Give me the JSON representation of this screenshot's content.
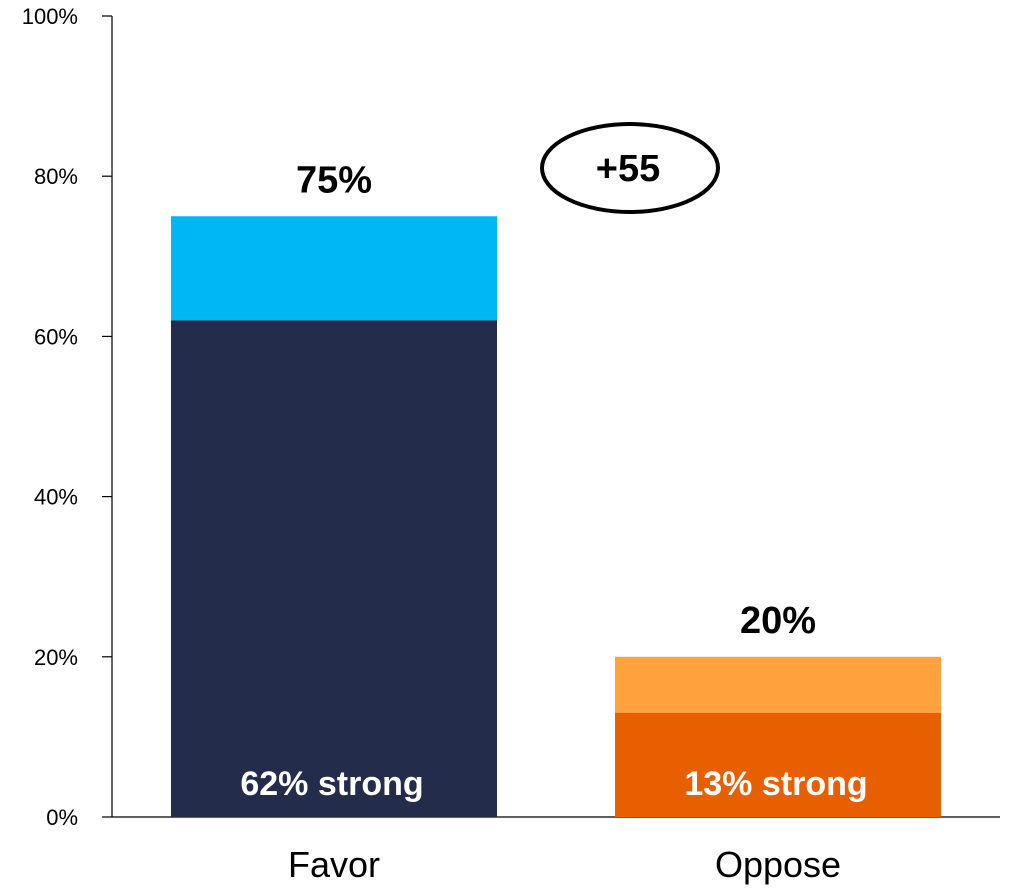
{
  "chart_data": {
    "type": "bar",
    "stacked": true,
    "categories": [
      "Favor",
      "Oppose"
    ],
    "bars": [
      {
        "category": "Favor",
        "total": 75,
        "strong": 62,
        "total_label": "75%",
        "strong_label": "62% strong",
        "colors": {
          "strong": "#242c4c",
          "rest": "#00b7f5"
        }
      },
      {
        "category": "Oppose",
        "total": 20,
        "strong": 13,
        "total_label": "20%",
        "strong_label": "13% strong",
        "colors": {
          "strong": "#e85f00",
          "rest": "#ffa13d"
        }
      }
    ],
    "ylim": [
      0,
      100
    ],
    "yticks": [
      0,
      20,
      40,
      60,
      80,
      100
    ],
    "ytick_labels": [
      "0%",
      "20%",
      "40%",
      "60%",
      "80%",
      "100%"
    ],
    "annotation": {
      "text": "+55",
      "shape": "ellipse"
    },
    "grid": false,
    "legend": "none"
  }
}
